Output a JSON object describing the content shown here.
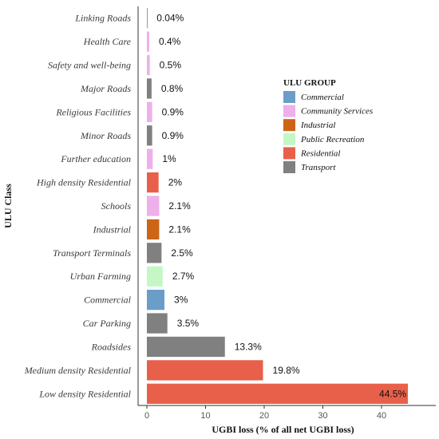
{
  "chart_data": {
    "type": "bar",
    "orientation": "horizontal",
    "xlabel": "UGBI loss (% of all net UGBI loss)",
    "ylabel": "ULU Class",
    "xlim": [
      0,
      46
    ],
    "xticks": [
      0,
      10,
      20,
      30,
      40
    ],
    "grid": false,
    "legend": {
      "title": "ULU GROUP",
      "position": "right",
      "entries": [
        {
          "name": "Commercial",
          "color": "#6a9ec9"
        },
        {
          "name": "Community Services",
          "color": "#eeb0ea"
        },
        {
          "name": "Industrial",
          "color": "#cc6516"
        },
        {
          "name": "Public Recreation",
          "color": "#c5f7c5"
        },
        {
          "name": "Residential",
          "color": "#e8604a"
        },
        {
          "name": "Transport",
          "color": "#808080"
        }
      ]
    },
    "categories": [
      "Linking Roads",
      "Health Care",
      "Safety and well-being",
      "Major Roads",
      "Religious Facilities",
      "Minor Roads",
      "Further education",
      "High density Residential",
      "Schools",
      "Industrial",
      "Transport Terminals",
      "Urban Farming",
      "Commercial",
      "Car Parking",
      "Roadsides",
      "Medium density Residential",
      "Low density Residential"
    ],
    "values": [
      0.04,
      0.4,
      0.5,
      0.8,
      0.9,
      0.9,
      1,
      2,
      2.1,
      2.1,
      2.5,
      2.7,
      3,
      3.5,
      13.3,
      19.8,
      44.5
    ],
    "value_labels": [
      "0.04%",
      "0.4%",
      "0.5%",
      "0.8%",
      "0.9%",
      "0.9%",
      "1%",
      "2%",
      "2.1%",
      "2.1%",
      "2.5%",
      "2.7%",
      "3%",
      "3.5%",
      "13.3%",
      "19.8%",
      "44.5%"
    ],
    "groups": [
      "Transport",
      "Community Services",
      "Community Services",
      "Transport",
      "Community Services",
      "Transport",
      "Community Services",
      "Residential",
      "Community Services",
      "Industrial",
      "Transport",
      "Public Recreation",
      "Commercial",
      "Transport",
      "Transport",
      "Residential",
      "Residential"
    ]
  }
}
